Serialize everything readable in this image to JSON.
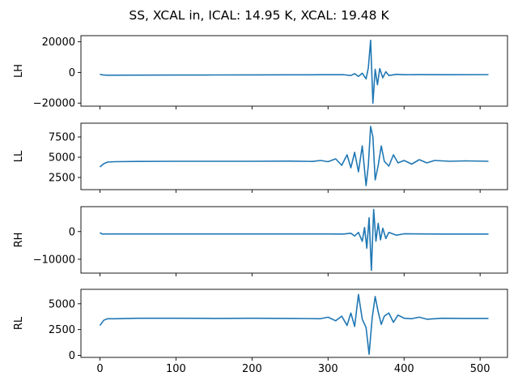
{
  "chart_data": {
    "title": "SS, XCAL in, ICAL: 14.95 K, XCAL: 19.48 K",
    "type": "line",
    "shared_x": {
      "xlim": [
        -25,
        536
      ],
      "ticks": [
        0,
        100,
        200,
        300,
        400,
        500
      ],
      "tick_labels": [
        "0",
        "100",
        "200",
        "300",
        "400",
        "500"
      ]
    },
    "line_color": "#1f77b4",
    "panels": [
      {
        "ylabel": "LH",
        "ylim": [
          -22000,
          24000
        ],
        "yticks": [
          20000,
          0,
          -20000
        ],
        "ytick_labels": [
          "20000",
          "0",
          "−20000"
        ],
        "baseline": -1200,
        "series": {
          "x": [
            0,
            5,
            10,
            50,
            100,
            150,
            200,
            250,
            290,
            300,
            320,
            330,
            335,
            340,
            345,
            350,
            353,
            356,
            359,
            362,
            365,
            368,
            372,
            376,
            380,
            390,
            400,
            420,
            450,
            500,
            511
          ],
          "y": [
            -1300,
            -1700,
            -1800,
            -1750,
            -1700,
            -1650,
            -1600,
            -1550,
            -1500,
            -1500,
            -1450,
            -2000,
            -800,
            -2600,
            -500,
            -4200,
            3000,
            21000,
            -20000,
            2000,
            -8000,
            2500,
            -3500,
            500,
            -2000,
            -1200,
            -1500,
            -1400,
            -1500,
            -1450,
            -1450
          ]
        }
      },
      {
        "ylabel": "LL",
        "ylim": [
          1000,
          9200
        ],
        "yticks": [
          7500,
          5000,
          2500
        ],
        "ytick_labels": [
          "7500",
          "5000",
          "2500"
        ],
        "baseline": 4500,
        "series": {
          "x": [
            0,
            5,
            10,
            20,
            50,
            100,
            150,
            200,
            250,
            280,
            290,
            300,
            310,
            318,
            325,
            330,
            335,
            340,
            345,
            350,
            353,
            356,
            359,
            362,
            366,
            370,
            374,
            380,
            386,
            392,
            400,
            410,
            420,
            430,
            440,
            460,
            480,
            511
          ],
          "y": [
            3800,
            4200,
            4400,
            4450,
            4480,
            4500,
            4500,
            4500,
            4520,
            4480,
            4600,
            4450,
            4800,
            4000,
            5300,
            3700,
            5600,
            3200,
            6400,
            1500,
            4000,
            8800,
            7500,
            2200,
            4000,
            6400,
            4500,
            3900,
            5300,
            4300,
            4600,
            4150,
            4700,
            4300,
            4600,
            4500,
            4550,
            4500
          ]
        }
      },
      {
        "ylabel": "RH",
        "ylim": [
          -15000,
          9000
        ],
        "yticks": [
          0,
          -10000
        ],
        "ytick_labels": [
          "0",
          "−10000"
        ],
        "baseline": -800,
        "series": {
          "x": [
            0,
            3,
            8,
            50,
            100,
            150,
            200,
            250,
            300,
            320,
            330,
            335,
            340,
            345,
            348,
            351,
            354,
            357,
            360,
            363,
            366,
            369,
            372,
            376,
            380,
            390,
            400,
            450,
            511
          ],
          "y": [
            -400,
            -900,
            -850,
            -850,
            -850,
            -850,
            -850,
            -850,
            -850,
            -900,
            -600,
            -1600,
            -300,
            -3500,
            1500,
            -6000,
            5000,
            -14000,
            8000,
            -3500,
            3000,
            -3000,
            1200,
            -2500,
            -300,
            -1300,
            -800,
            -900,
            -900
          ]
        }
      },
      {
        "ylabel": "RL",
        "ylim": [
          -200,
          6400
        ],
        "yticks": [
          5000,
          2500,
          0
        ],
        "ytick_labels": [
          "5000",
          "2500",
          "0"
        ],
        "baseline": 3600,
        "series": {
          "x": [
            0,
            5,
            10,
            20,
            50,
            100,
            150,
            200,
            250,
            290,
            300,
            310,
            318,
            325,
            330,
            335,
            340,
            345,
            350,
            354,
            358,
            362,
            366,
            370,
            374,
            380,
            386,
            392,
            400,
            410,
            420,
            430,
            450,
            480,
            511
          ],
          "y": [
            2900,
            3400,
            3550,
            3550,
            3600,
            3600,
            3580,
            3600,
            3580,
            3550,
            3700,
            3350,
            3800,
            2900,
            4100,
            2800,
            5900,
            3500,
            2700,
            100,
            3600,
            5700,
            4200,
            3000,
            3800,
            4100,
            3200,
            3900,
            3600,
            3550,
            3700,
            3500,
            3600,
            3580,
            3580
          ]
        }
      }
    ]
  }
}
